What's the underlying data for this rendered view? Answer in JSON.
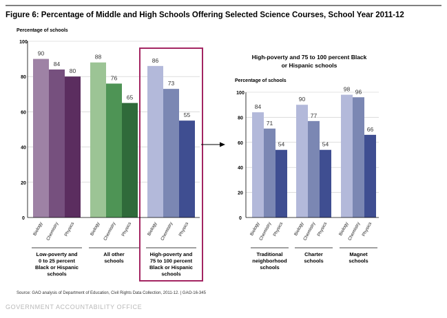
{
  "title": "Figure 6: Percentage of Middle and High Schools Offering Selected Science Courses, School Year 2011-12",
  "source": "Source: GAO analysis of Department of Education, Civil Rights Data Collection, 2011-12.  |  GAO-16-345",
  "agency": "GOVERNMENT ACCOUNTABILITY OFFICE",
  "colors": {
    "purple": [
      "#9e82a5",
      "#76507e",
      "#5b2d5f"
    ],
    "green": [
      "#9cc495",
      "#4e9455",
      "#2f6a3a"
    ],
    "blue": [
      "#b3b9da",
      "#7b87b3",
      "#3f4e91"
    ],
    "highlight_border": "#a32461"
  },
  "chart_data": [
    {
      "type": "bar",
      "ylabel": "Percentage of schools",
      "ylim": [
        0,
        100
      ],
      "yticks": [
        0,
        20,
        40,
        60,
        80,
        100
      ],
      "courses": [
        "Biology",
        "Chemistry",
        "Physics"
      ],
      "groups": [
        {
          "label": [
            "Low-poverty and",
            "0 to 25 percent",
            "Black or Hispanic",
            "schools"
          ],
          "values": [
            90,
            84,
            80
          ],
          "palette": "purple"
        },
        {
          "label": [
            "All other",
            "schools"
          ],
          "values": [
            88,
            76,
            65
          ],
          "palette": "green"
        },
        {
          "label": [
            "High-poverty and",
            "75 to 100 percent",
            "Black or Hispanic",
            "schools"
          ],
          "values": [
            86,
            73,
            55
          ],
          "palette": "blue",
          "highlighted": true
        }
      ]
    },
    {
      "type": "bar",
      "title": [
        "High-poverty and 75 to 100 percent Black",
        "or Hispanic schools"
      ],
      "ylabel": "Percentage of schools",
      "ylim": [
        0,
        100
      ],
      "yticks": [
        0,
        20,
        40,
        60,
        80,
        100
      ],
      "courses": [
        "Biology",
        "Chemistry",
        "Physics"
      ],
      "groups": [
        {
          "label": [
            "Traditional",
            "neighborhood",
            "schools"
          ],
          "values": [
            84,
            71,
            54
          ],
          "palette": "blue"
        },
        {
          "label": [
            "Charter",
            "schools"
          ],
          "values": [
            90,
            77,
            54
          ],
          "palette": "blue"
        },
        {
          "label": [
            "Magnet",
            "schools"
          ],
          "values": [
            98,
            96,
            66
          ],
          "palette": "blue"
        }
      ]
    }
  ]
}
